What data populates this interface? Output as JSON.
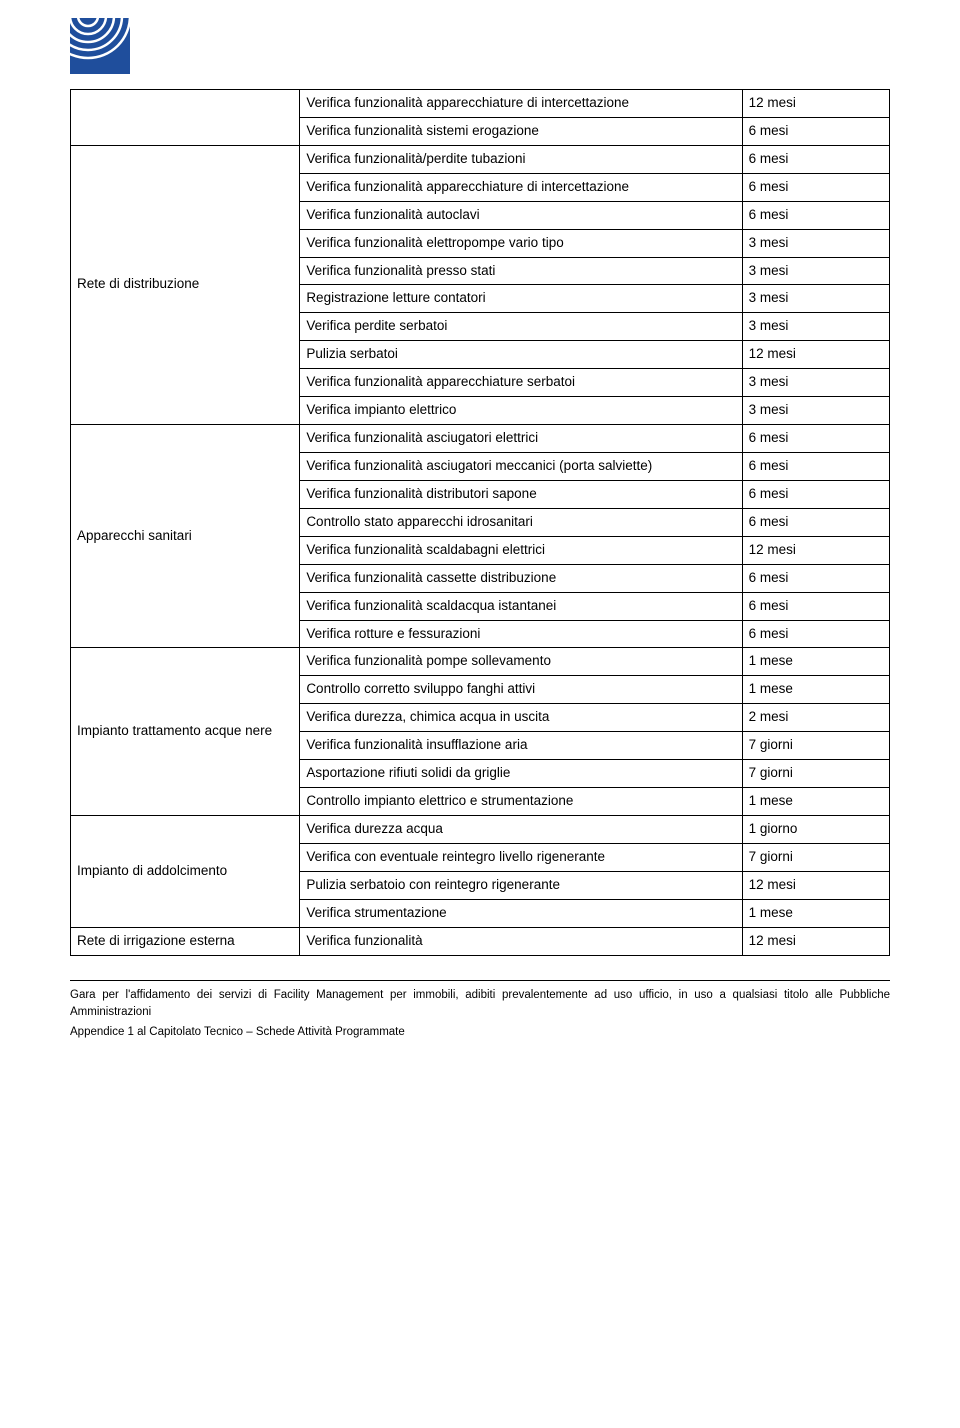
{
  "logo": {
    "stroke_color": "#ffffff",
    "bg_color": "#1f4e9c",
    "width": 60,
    "height": 56
  },
  "table": {
    "border_color": "#000000",
    "font_size": 13.5,
    "sections": [
      {
        "label": null,
        "rows": [
          {
            "desc": "Verifica funzionalità apparecchiature di intercettazione",
            "freq": "12 mesi",
            "desc_lines": 2
          },
          {
            "desc": "Verifica funzionalità sistemi erogazione",
            "freq": "6 mesi"
          }
        ]
      },
      {
        "label": "Rete di distribuzione",
        "rows": [
          {
            "desc": "Verifica funzionalità/perdite tubazioni",
            "freq": "6 mesi"
          },
          {
            "desc": "Verifica funzionalità apparecchiature di intercettazione",
            "freq": "6 mesi",
            "desc_lines": 2,
            "freq_valign": "bottom"
          },
          {
            "desc": "Verifica funzionalità autoclavi",
            "freq": "6 mesi"
          },
          {
            "desc": "Verifica funzionalità elettropompe vario tipo",
            "freq": "3 mesi"
          },
          {
            "desc": "Verifica funzionalità presso stati",
            "freq": "3 mesi"
          },
          {
            "desc": "Registrazione letture contatori",
            "freq": "3 mesi"
          },
          {
            "desc": "Verifica perdite serbatoi",
            "freq": "3 mesi"
          },
          {
            "desc": "Pulizia serbatoi",
            "freq": "12 mesi"
          },
          {
            "desc": "Verifica funzionalità apparecchiature serbatoi",
            "freq": "3 mesi"
          },
          {
            "desc": "Verifica impianto elettrico",
            "freq": "3 mesi"
          }
        ]
      },
      {
        "label": "Apparecchi sanitari",
        "rows": [
          {
            "desc": "Verifica funzionalità asciugatori elettrici",
            "freq": "6 mesi"
          },
          {
            "desc": "Verifica funzionalità asciugatori meccanici (porta salviette)",
            "freq": "6 mesi",
            "justify": true
          },
          {
            "desc": "Verifica funzionalità distributori sapone",
            "freq": "6 mesi"
          },
          {
            "desc": "Controllo stato apparecchi idrosanitari",
            "freq": "6 mesi"
          },
          {
            "desc": "Verifica funzionalità scaldabagni elettrici",
            "freq": "12 mesi"
          },
          {
            "desc": "Verifica funzionalità cassette distribuzione",
            "freq": "6 mesi"
          },
          {
            "desc": "Verifica funzionalità scaldacqua istantanei",
            "freq": "6  mesi"
          },
          {
            "desc": "Verifica rotture e fessurazioni",
            "freq": "6 mesi"
          }
        ]
      },
      {
        "label": "Impianto trattamento acque nere",
        "rows": [
          {
            "desc": "Verifica funzionalità pompe sollevamento",
            "freq": "1 mese"
          },
          {
            "desc": "Controllo corretto sviluppo fanghi attivi",
            "freq": "1 mese"
          },
          {
            "desc": "Verifica durezza, chimica acqua in uscita",
            "freq": "2 mesi"
          },
          {
            "desc": "Verifica funzionalità insufflazione aria",
            "freq": "7 giorni"
          },
          {
            "desc": "Asportazione rifiuti solidi da griglie",
            "freq": "7 giorni"
          },
          {
            "desc": "Controllo impianto elettrico e strumentazione",
            "freq": "1  mese"
          }
        ]
      },
      {
        "label": "Impianto di addolcimento",
        "rows": [
          {
            "desc": "Verifica durezza acqua",
            "freq": "1 giorno"
          },
          {
            "desc": "Verifica con eventuale reintegro livello rigenerante",
            "freq": "7 giorni"
          },
          {
            "desc": "Pulizia serbatoio con reintegro rigenerante",
            "freq": "12 mesi"
          },
          {
            "desc": "Verifica strumentazione",
            "freq": "1  mese"
          }
        ]
      },
      {
        "label": "Rete di irrigazione esterna",
        "rows": [
          {
            "desc": "Verifica funzionalità",
            "freq": "12 mesi"
          }
        ]
      }
    ]
  },
  "footer": {
    "line1": "Gara per l'affidamento dei servizi di Facility Management per immobili, adibiti prevalentemente ad uso ufficio, in uso a qualsiasi titolo alle Pubbliche Amministrazioni",
    "line2": "Appendice 1 al Capitolato Tecnico –  Schede Attività Programmate"
  }
}
